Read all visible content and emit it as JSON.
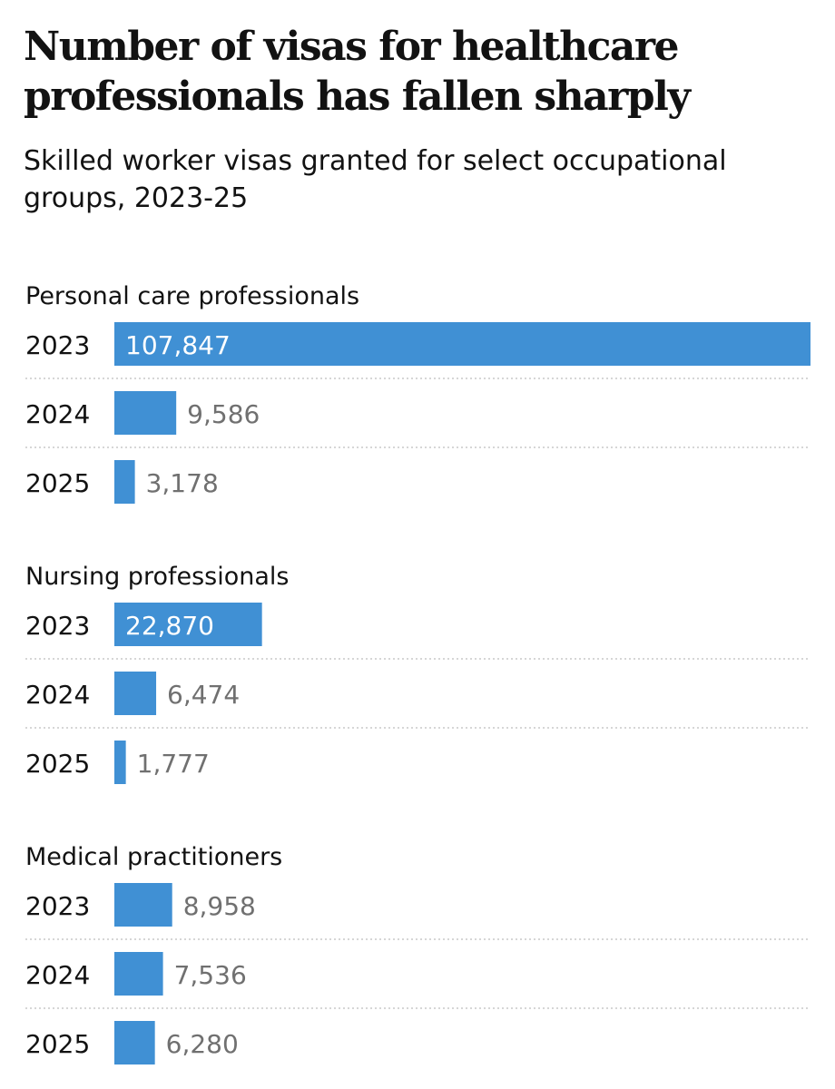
{
  "title": "Number of visas for healthcare professionals has fallen sharply",
  "subtitle": "Skilled worker visas granted for select occupational groups, 2023-25",
  "colors": {
    "bar": "#4090d4",
    "text": "#121212",
    "value_outside": "#707070",
    "value_inside": "#ffffff"
  },
  "chart_data": {
    "type": "bar",
    "orientation": "horizontal",
    "max_value": 107847,
    "groups": [
      {
        "name": "Personal care professionals",
        "rows": [
          {
            "year": "2023",
            "value": 107847,
            "label": "107,847"
          },
          {
            "year": "2024",
            "value": 9586,
            "label": "9,586"
          },
          {
            "year": "2025",
            "value": 3178,
            "label": "3,178"
          }
        ]
      },
      {
        "name": "Nursing professionals",
        "rows": [
          {
            "year": "2023",
            "value": 22870,
            "label": "22,870"
          },
          {
            "year": "2024",
            "value": 6474,
            "label": "6,474"
          },
          {
            "year": "2025",
            "value": 1777,
            "label": "1,777"
          }
        ]
      },
      {
        "name": "Medical practitioners",
        "rows": [
          {
            "year": "2023",
            "value": 8958,
            "label": "8,958"
          },
          {
            "year": "2024",
            "value": 7536,
            "label": "7,536"
          },
          {
            "year": "2025",
            "value": 6280,
            "label": "6,280"
          }
        ]
      }
    ]
  }
}
